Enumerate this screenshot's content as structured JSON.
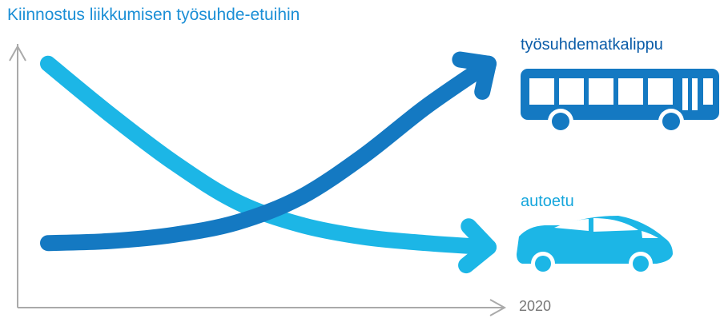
{
  "chart_data": {
    "type": "line",
    "title": "Kiinnostus liikkumisen työsuhde-etuihin",
    "xlabel": "",
    "ylabel": "",
    "x_end_label": "2020",
    "series": [
      {
        "name": "työsuhdematkalippu",
        "trend": "increasing",
        "color": "#1479c2",
        "icon": "bus-icon",
        "values": [
          0.1,
          0.11,
          0.14,
          0.2,
          0.32,
          0.52,
          0.76,
          0.97
        ]
      },
      {
        "name": "autoetu",
        "trend": "decreasing",
        "color": "#1cb6e6",
        "icon": "car-icon",
        "values": [
          0.97,
          0.72,
          0.49,
          0.3,
          0.19,
          0.13,
          0.1,
          0.08
        ]
      }
    ],
    "grid": false,
    "legend": "series labels placed at line ends with icons"
  },
  "colors": {
    "title": "#1b8fd6",
    "axis": "#aaaaaa",
    "bus": "#1479c2",
    "car": "#1cb6e6"
  }
}
